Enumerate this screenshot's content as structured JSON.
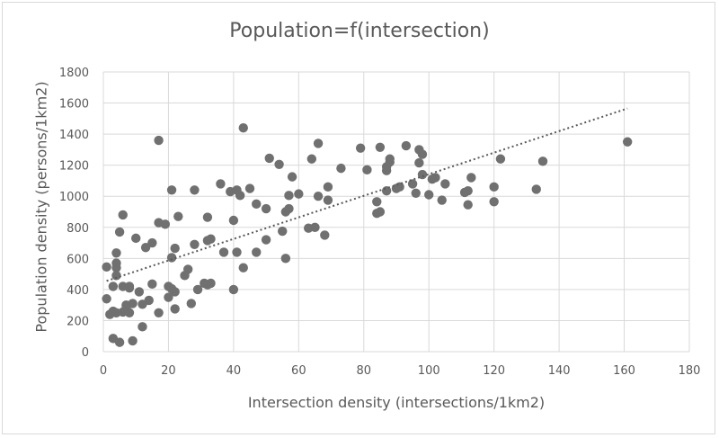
{
  "chart_data": {
    "type": "scatter",
    "title": "Population=f(intersection)",
    "xlabel": "Intersection density (intersections/1km2)",
    "ylabel": "Population density (persons/1km2)",
    "xlim": [
      0,
      180
    ],
    "ylim": [
      0,
      1800
    ],
    "xticks": [
      0,
      20,
      40,
      60,
      80,
      100,
      120,
      140,
      160,
      180
    ],
    "yticks": [
      0,
      200,
      400,
      600,
      800,
      1000,
      1200,
      1400,
      1600,
      1800
    ],
    "grid": "vertical and horizontal major gridlines",
    "marker_color": "#707070",
    "trendline": {
      "type": "linear",
      "style": "dotted",
      "color": "#595959",
      "x": [
        1,
        161
      ],
      "y": [
        455,
        1565
      ]
    },
    "points": [
      {
        "x": 1,
        "y": 545
      },
      {
        "x": 1,
        "y": 340
      },
      {
        "x": 2,
        "y": 240
      },
      {
        "x": 3,
        "y": 420
      },
      {
        "x": 3,
        "y": 260
      },
      {
        "x": 3,
        "y": 85
      },
      {
        "x": 4,
        "y": 635
      },
      {
        "x": 4,
        "y": 570
      },
      {
        "x": 4,
        "y": 540
      },
      {
        "x": 4,
        "y": 490
      },
      {
        "x": 4,
        "y": 250
      },
      {
        "x": 5,
        "y": 770
      },
      {
        "x": 5,
        "y": 60
      },
      {
        "x": 6,
        "y": 880
      },
      {
        "x": 6,
        "y": 420
      },
      {
        "x": 6,
        "y": 255
      },
      {
        "x": 7,
        "y": 300
      },
      {
        "x": 7,
        "y": 280
      },
      {
        "x": 8,
        "y": 420
      },
      {
        "x": 8,
        "y": 410
      },
      {
        "x": 8,
        "y": 250
      },
      {
        "x": 9,
        "y": 310
      },
      {
        "x": 9,
        "y": 70
      },
      {
        "x": 10,
        "y": 730
      },
      {
        "x": 11,
        "y": 385
      },
      {
        "x": 12,
        "y": 305
      },
      {
        "x": 12,
        "y": 160
      },
      {
        "x": 13,
        "y": 670
      },
      {
        "x": 14,
        "y": 330
      },
      {
        "x": 15,
        "y": 700
      },
      {
        "x": 15,
        "y": 435
      },
      {
        "x": 17,
        "y": 1360
      },
      {
        "x": 17,
        "y": 830
      },
      {
        "x": 17,
        "y": 250
      },
      {
        "x": 19,
        "y": 820
      },
      {
        "x": 20,
        "y": 420
      },
      {
        "x": 20,
        "y": 350
      },
      {
        "x": 21,
        "y": 1040
      },
      {
        "x": 21,
        "y": 605
      },
      {
        "x": 21,
        "y": 405
      },
      {
        "x": 22,
        "y": 665
      },
      {
        "x": 22,
        "y": 385
      },
      {
        "x": 22,
        "y": 275
      },
      {
        "x": 23,
        "y": 870
      },
      {
        "x": 25,
        "y": 490
      },
      {
        "x": 26,
        "y": 530
      },
      {
        "x": 27,
        "y": 310
      },
      {
        "x": 28,
        "y": 1040
      },
      {
        "x": 28,
        "y": 690
      },
      {
        "x": 29,
        "y": 400
      },
      {
        "x": 31,
        "y": 440
      },
      {
        "x": 32,
        "y": 865
      },
      {
        "x": 32,
        "y": 715
      },
      {
        "x": 32,
        "y": 430
      },
      {
        "x": 33,
        "y": 725
      },
      {
        "x": 33,
        "y": 440
      },
      {
        "x": 36,
        "y": 1080
      },
      {
        "x": 37,
        "y": 640
      },
      {
        "x": 39,
        "y": 1030
      },
      {
        "x": 40,
        "y": 845
      },
      {
        "x": 40,
        "y": 400
      },
      {
        "x": 41,
        "y": 1040
      },
      {
        "x": 41,
        "y": 640
      },
      {
        "x": 42,
        "y": 1005
      },
      {
        "x": 43,
        "y": 1440
      },
      {
        "x": 43,
        "y": 540
      },
      {
        "x": 45,
        "y": 1050
      },
      {
        "x": 47,
        "y": 950
      },
      {
        "x": 47,
        "y": 640
      },
      {
        "x": 50,
        "y": 920
      },
      {
        "x": 50,
        "y": 720
      },
      {
        "x": 51,
        "y": 1245
      },
      {
        "x": 54,
        "y": 1205
      },
      {
        "x": 55,
        "y": 775
      },
      {
        "x": 56,
        "y": 900
      },
      {
        "x": 56,
        "y": 600
      },
      {
        "x": 57,
        "y": 1005
      },
      {
        "x": 57,
        "y": 920
      },
      {
        "x": 58,
        "y": 1125
      },
      {
        "x": 60,
        "y": 1015
      },
      {
        "x": 63,
        "y": 795
      },
      {
        "x": 64,
        "y": 1240
      },
      {
        "x": 65,
        "y": 800
      },
      {
        "x": 66,
        "y": 1340
      },
      {
        "x": 66,
        "y": 1000
      },
      {
        "x": 68,
        "y": 750
      },
      {
        "x": 69,
        "y": 1060
      },
      {
        "x": 69,
        "y": 975
      },
      {
        "x": 73,
        "y": 1180
      },
      {
        "x": 79,
        "y": 1310
      },
      {
        "x": 81,
        "y": 1170
      },
      {
        "x": 84,
        "y": 965
      },
      {
        "x": 84,
        "y": 890
      },
      {
        "x": 85,
        "y": 1315
      },
      {
        "x": 85,
        "y": 900
      },
      {
        "x": 87,
        "y": 1190
      },
      {
        "x": 87,
        "y": 1165
      },
      {
        "x": 87,
        "y": 1035
      },
      {
        "x": 88,
        "y": 1240
      },
      {
        "x": 88,
        "y": 1220
      },
      {
        "x": 90,
        "y": 1050
      },
      {
        "x": 91,
        "y": 1060
      },
      {
        "x": 93,
        "y": 1325
      },
      {
        "x": 95,
        "y": 1080
      },
      {
        "x": 96,
        "y": 1020
      },
      {
        "x": 97,
        "y": 1300
      },
      {
        "x": 97,
        "y": 1215
      },
      {
        "x": 98,
        "y": 1270
      },
      {
        "x": 98,
        "y": 1140
      },
      {
        "x": 100,
        "y": 1010
      },
      {
        "x": 101,
        "y": 1110
      },
      {
        "x": 102,
        "y": 1120
      },
      {
        "x": 104,
        "y": 975
      },
      {
        "x": 105,
        "y": 1080
      },
      {
        "x": 111,
        "y": 1025
      },
      {
        "x": 112,
        "y": 1035
      },
      {
        "x": 112,
        "y": 945
      },
      {
        "x": 113,
        "y": 1120
      },
      {
        "x": 120,
        "y": 1060
      },
      {
        "x": 120,
        "y": 965
      },
      {
        "x": 122,
        "y": 1240
      },
      {
        "x": 133,
        "y": 1045
      },
      {
        "x": 135,
        "y": 1225
      },
      {
        "x": 161,
        "y": 1350
      }
    ]
  }
}
